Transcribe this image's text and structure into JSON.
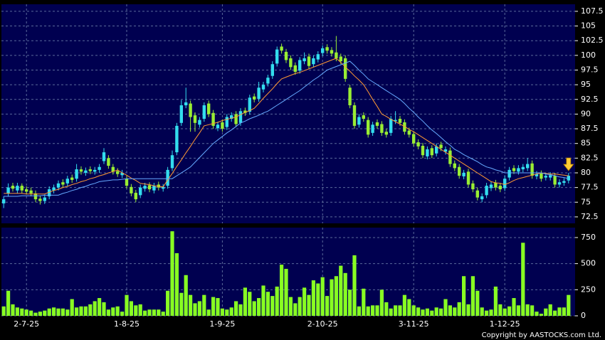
{
  "chart_data": [
    {
      "type": "candlestick",
      "ylim": [
        71.4,
        108.7
      ],
      "yticks": [
        72.5,
        75,
        77.5,
        80,
        82.5,
        85,
        87.5,
        90,
        92.5,
        95,
        97.5,
        100,
        102.5,
        105,
        107.5
      ],
      "grid": true,
      "up_color": "#33ddee",
      "down_color": "#99ee33",
      "open": [
        74.8,
        76.5,
        77.8,
        77.0,
        77.8,
        77.2,
        77.0,
        76.5,
        75.6,
        75.2,
        76.0,
        77.0,
        77.5,
        78.4,
        78.2,
        79.2,
        79.0,
        80.6,
        80.0,
        80.6,
        80.2,
        80.5,
        82.0,
        82.5,
        81.0,
        80.3,
        79.6,
        79.0,
        77.6,
        76.6,
        76.2,
        77.3,
        77.9,
        77.0,
        78.0,
        77.3,
        77.8,
        80.8,
        83.5,
        88.5,
        91.5,
        91.8,
        89.8,
        88.2,
        89.2,
        91.8,
        90.2,
        87.6,
        88.6,
        87.8,
        89.2,
        90.0,
        88.5,
        90.6,
        90.4,
        93.0,
        92.6,
        94.2,
        95.2,
        96.5,
        98.6,
        101.5,
        100.6,
        99.5,
        98.3,
        97.4,
        99.0,
        99.8,
        98.5,
        99.3,
        100.4,
        101.4,
        100.9,
        100.5,
        99.8,
        99.5,
        94.5,
        91.5,
        88.2,
        89.8,
        89.0,
        86.8,
        88.6,
        88.3,
        87.0,
        86.8,
        88.8,
        89.2,
        88.6,
        87.2,
        86.6,
        85.2,
        84.6,
        82.8,
        84.2,
        83.3,
        84.8,
        83.6,
        83.8,
        81.6,
        81.0,
        79.4,
        80.2,
        78.2,
        77.0,
        75.5,
        76.2,
        77.4,
        78.3,
        77.8,
        77.4,
        79.2,
        80.8,
        80.2,
        80.6,
        80.8,
        81.6,
        79.4,
        79.9,
        79.2,
        79.2,
        79.5,
        78.0,
        78.3,
        78.7
      ],
      "high": [
        76.0,
        78.2,
        78.3,
        78.3,
        78.2,
        77.7,
        77.5,
        77.0,
        76.1,
        76.3,
        77.7,
        78.0,
        78.7,
        78.9,
        79.5,
        79.7,
        81.5,
        81.1,
        80.9,
        81.1,
        81.0,
        81.5,
        84.2,
        83.0,
        81.5,
        80.8,
        80.5,
        79.5,
        78.1,
        77.1,
        78.0,
        78.3,
        78.4,
        78.3,
        78.5,
        78.1,
        81.0,
        83.8,
        88.5,
        92.4,
        94.5,
        92.3,
        90.3,
        89.5,
        92.0,
        92.3,
        90.7,
        88.7,
        89.1,
        90.0,
        90.3,
        90.5,
        91.0,
        91.1,
        93.3,
        93.5,
        95.5,
        95.5,
        96.7,
        99.0,
        101.5,
        102.0,
        101.1,
        100.0,
        98.8,
        99.7,
        100.5,
        100.3,
        100.0,
        100.7,
        101.7,
        101.9,
        101.4,
        103.3,
        100.3,
        100.0,
        95.0,
        92.0,
        90.0,
        90.3,
        89.5,
        88.7,
        89.1,
        88.8,
        87.5,
        89.7,
        90.5,
        89.7,
        89.1,
        87.7,
        87.1,
        85.7,
        85.1,
        84.5,
        84.7,
        85.0,
        85.3,
        84.5,
        84.3,
        82.1,
        81.5,
        80.5,
        80.7,
        78.7,
        77.5,
        76.5,
        78.3,
        78.5,
        78.8,
        78.3,
        79.5,
        81.0,
        81.3,
        81.3,
        81.5,
        82.5,
        82.1,
        80.3,
        80.4,
        80.0,
        80.1,
        80.0,
        78.9,
        79.1,
        80.0
      ],
      "low": [
        74.0,
        76.0,
        76.8,
        76.5,
        76.5,
        76.3,
        76.0,
        75.0,
        74.6,
        74.7,
        75.5,
        76.5,
        77.0,
        77.5,
        77.7,
        78.3,
        78.5,
        79.7,
        79.5,
        79.8,
        79.7,
        80.0,
        81.5,
        80.7,
        79.7,
        79.3,
        79.1,
        77.3,
        76.0,
        75.0,
        75.7,
        76.8,
        76.7,
        76.5,
        77.0,
        76.8,
        77.3,
        80.3,
        83.0,
        88.0,
        91.0,
        87.0,
        87.0,
        87.7,
        88.7,
        89.5,
        87.5,
        87.1,
        87.0,
        87.3,
        88.7,
        87.8,
        88.0,
        89.7,
        89.9,
        92.0,
        92.1,
        93.7,
        94.7,
        96.0,
        98.1,
        100.3,
        98.7,
        97.5,
        96.7,
        96.9,
        98.5,
        97.7,
        98.0,
        98.8,
        99.9,
        100.3,
        99.8,
        99.0,
        98.5,
        95.5,
        91.0,
        87.5,
        87.7,
        88.7,
        86.0,
        86.3,
        87.5,
        86.3,
        86.0,
        86.3,
        88.3,
        88.0,
        86.5,
        86.0,
        84.5,
        84.0,
        82.5,
        82.3,
        82.5,
        82.8,
        83.7,
        83.1,
        81.0,
        80.3,
        79.0,
        78.9,
        77.5,
        76.7,
        75.3,
        75.0,
        75.7,
        76.9,
        77.0,
        76.7,
        76.9,
        78.7,
        79.8,
        79.7,
        80.1,
        80.3,
        79.0,
        78.9,
        78.5,
        78.7,
        78.7,
        77.5,
        77.5,
        77.8,
        78.2
      ],
      "close": [
        75.5,
        77.5,
        77.3,
        77.8,
        77.0,
        76.8,
        76.5,
        75.5,
        75.2,
        75.8,
        77.2,
        77.5,
        78.2,
        78.0,
        79.0,
        78.8,
        80.6,
        80.2,
        80.4,
        80.3,
        80.5,
        81.0,
        83.5,
        81.2,
        80.2,
        79.8,
        80.0,
        77.8,
        76.5,
        75.5,
        77.5,
        77.8,
        77.2,
        77.8,
        77.5,
        77.6,
        80.5,
        83.0,
        88.0,
        91.5,
        92.0,
        89.5,
        88.5,
        89.0,
        91.5,
        90.0,
        88.0,
        88.2,
        87.5,
        89.5,
        89.8,
        88.3,
        90.5,
        90.2,
        92.8,
        92.5,
        94.5,
        95.0,
        96.2,
        98.5,
        101.0,
        100.8,
        99.2,
        98.0,
        97.2,
        99.2,
        99.5,
        98.2,
        99.5,
        100.2,
        101.2,
        100.8,
        100.3,
        99.5,
        99.0,
        96.0,
        91.5,
        88.0,
        89.5,
        89.2,
        86.5,
        88.2,
        88.0,
        86.8,
        86.5,
        89.2,
        89.0,
        88.5,
        87.0,
        86.5,
        85.0,
        84.5,
        83.0,
        84.0,
        83.0,
        84.5,
        84.2,
        84.0,
        81.5,
        80.8,
        79.5,
        80.0,
        78.0,
        77.2,
        75.8,
        76.0,
        77.8,
        78.0,
        77.5,
        77.2,
        79.0,
        80.5,
        80.3,
        80.8,
        81.0,
        81.5,
        79.5,
        79.8,
        79.0,
        79.5,
        79.6,
        78.0,
        78.4,
        78.6,
        79.5
      ],
      "series": [
        {
          "color": "#ff9933",
          "values": [
            76.5,
            76.5,
            76.5,
            76.5,
            76.5,
            76.4,
            76.4,
            76.4,
            76.4,
            76.4,
            76.7,
            77.0,
            77.2,
            77.5,
            77.7,
            78.0,
            78.2,
            78.5,
            78.7,
            79.0,
            79.2,
            79.5,
            79.7,
            80.0,
            80.2,
            80.5,
            80.0,
            79.6,
            79.1,
            78.7,
            78.2,
            78.1,
            78.0,
            77.8,
            77.7,
            77.6,
            78.8,
            79.9,
            81.1,
            82.2,
            83.4,
            84.5,
            85.7,
            86.8,
            88.0,
            88.2,
            88.4,
            88.6,
            88.9,
            89.1,
            89.3,
            89.5,
            89.9,
            90.3,
            90.6,
            91.0,
            91.8,
            92.7,
            93.5,
            94.3,
            95.2,
            96.0,
            96.3,
            96.6,
            96.9,
            97.1,
            97.4,
            97.7,
            98.0,
            98.3,
            98.6,
            98.9,
            99.2,
            99.5,
            98.8,
            98.0,
            97.3,
            96.5,
            95.8,
            95.0,
            93.8,
            92.5,
            91.3,
            90.0,
            89.6,
            89.1,
            88.7,
            88.3,
            87.9,
            87.4,
            87.0,
            86.5,
            86.0,
            85.5,
            85.0,
            84.5,
            84.0,
            83.5,
            83.0,
            82.5,
            82.0,
            81.5,
            81.0,
            80.5,
            80.0,
            79.5,
            79.0,
            78.5,
            78.3,
            78.2,
            78.0,
            78.3,
            78.7,
            79.0,
            79.2,
            79.4,
            79.6,
            79.8,
            80.0,
            79.9,
            79.8,
            79.8,
            79.7,
            79.6,
            79.5
          ]
        },
        {
          "color": "#66aaff",
          "values": [
            76.0,
            76.0,
            76.0,
            76.0,
            76.1,
            76.1,
            76.1,
            76.1,
            76.1,
            76.2,
            76.2,
            76.2,
            76.2,
            76.5,
            76.7,
            77.0,
            77.2,
            77.5,
            77.7,
            78.0,
            78.2,
            78.5,
            78.6,
            78.7,
            78.8,
            78.8,
            78.9,
            79.0,
            79.0,
            79.0,
            79.0,
            79.0,
            79.0,
            79.0,
            79.0,
            79.0,
            79.0,
            79.0,
            79.5,
            80.0,
            80.5,
            81.0,
            81.8,
            82.6,
            83.4,
            84.2,
            85.0,
            85.6,
            86.2,
            86.8,
            87.3,
            87.9,
            88.5,
            88.8,
            89.2,
            89.5,
            89.8,
            90.2,
            90.5,
            91.0,
            91.5,
            92.0,
            92.5,
            93.0,
            93.5,
            94.0,
            94.6,
            95.2,
            95.8,
            96.3,
            96.9,
            97.5,
            97.8,
            98.1,
            98.4,
            98.7,
            99.0,
            98.3,
            97.5,
            96.8,
            96.0,
            95.5,
            95.0,
            94.5,
            94.0,
            93.5,
            93.0,
            92.5,
            91.8,
            91.0,
            90.3,
            89.5,
            88.8,
            88.0,
            87.3,
            86.7,
            86.0,
            85.3,
            84.7,
            84.0,
            83.6,
            83.1,
            82.7,
            82.3,
            81.9,
            81.4,
            81.0,
            80.8,
            80.5,
            80.3,
            80.0,
            80.0,
            80.0,
            80.0,
            80.0,
            80.0,
            80.0,
            80.0,
            80.0,
            79.8,
            79.7,
            79.5,
            79.3,
            79.2,
            79.0
          ]
        }
      ]
    },
    {
      "type": "bar",
      "color": "#88ff22",
      "ylim": [
        0,
        845
      ],
      "yticks": [
        0,
        250,
        500,
        750
      ],
      "grid": true,
      "categories": [
        null,
        null,
        null,
        null,
        null,
        "2-7-25",
        null,
        null,
        null,
        null,
        null,
        null,
        null,
        null,
        null,
        null,
        null,
        null,
        null,
        null,
        null,
        null,
        null,
        null,
        null,
        null,
        null,
        "1-8-25",
        null,
        null,
        null,
        null,
        null,
        null,
        null,
        null,
        null,
        null,
        null,
        null,
        null,
        null,
        null,
        null,
        null,
        null,
        null,
        null,
        "1-9-25",
        null,
        null,
        null,
        null,
        null,
        null,
        null,
        null,
        null,
        null,
        null,
        null,
        null,
        null,
        null,
        null,
        null,
        null,
        null,
        null,
        null,
        "2-10-25",
        null,
        null,
        null,
        null,
        null,
        null,
        null,
        null,
        null,
        null,
        null,
        null,
        null,
        null,
        null,
        null,
        null,
        null,
        null,
        "3-11-25",
        null,
        null,
        null,
        null,
        null,
        null,
        null,
        null,
        null,
        null,
        null,
        null,
        null,
        null,
        null,
        null,
        null,
        null,
        null,
        "1-12-25",
        null,
        null,
        null,
        null,
        null,
        null,
        null,
        null,
        null,
        null,
        null,
        null,
        null,
        null
      ],
      "values": [
        90,
        240,
        110,
        80,
        70,
        60,
        50,
        30,
        40,
        50,
        70,
        80,
        70,
        70,
        60,
        160,
        80,
        90,
        90,
        110,
        140,
        170,
        130,
        60,
        80,
        90,
        40,
        200,
        140,
        100,
        110,
        50,
        60,
        60,
        60,
        40,
        240,
        810,
        600,
        220,
        390,
        200,
        120,
        140,
        200,
        60,
        180,
        170,
        70,
        60,
        80,
        140,
        110,
        270,
        230,
        140,
        170,
        290,
        230,
        190,
        280,
        490,
        450,
        180,
        120,
        180,
        270,
        200,
        340,
        310,
        370,
        190,
        350,
        380,
        480,
        410,
        250,
        580,
        90,
        260,
        90,
        100,
        100,
        250,
        130,
        70,
        100,
        100,
        200,
        160,
        100,
        80,
        60,
        70,
        50,
        80,
        70,
        160,
        100,
        80,
        130,
        380,
        110,
        380,
        240,
        80,
        50,
        60,
        280,
        110,
        70,
        90,
        170,
        100,
        700,
        110,
        100,
        40,
        20,
        70,
        110,
        50,
        80,
        80,
        200
      ],
      "footer": "Copyright by AASTOCKS.com Ltd."
    }
  ]
}
